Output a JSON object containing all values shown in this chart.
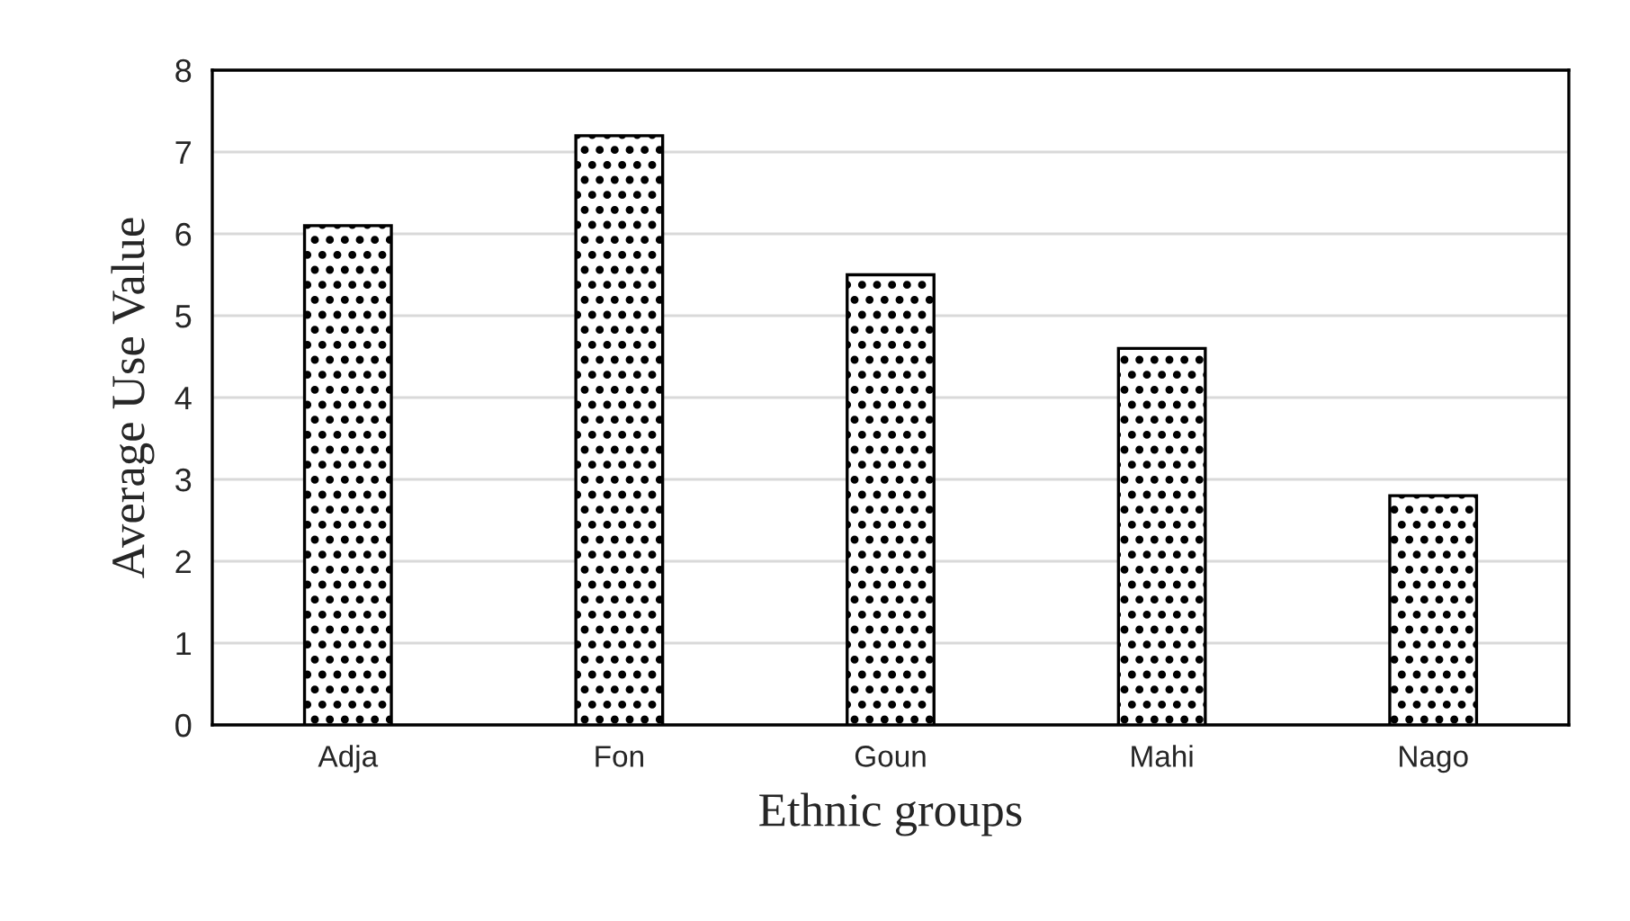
{
  "chart_data": {
    "type": "bar",
    "xlabel": "Ethnic groups",
    "ylabel": "Average Use Value",
    "categories": [
      "Adja",
      "Fon",
      "Goun",
      "Mahi",
      "Nago"
    ],
    "values": [
      6.1,
      7.2,
      5.5,
      4.6,
      2.8
    ],
    "color": "#000000",
    "ylim": [
      0,
      8
    ],
    "yticks": [
      0,
      1,
      2,
      3,
      4,
      5,
      6,
      7,
      8
    ],
    "grid": "y"
  }
}
